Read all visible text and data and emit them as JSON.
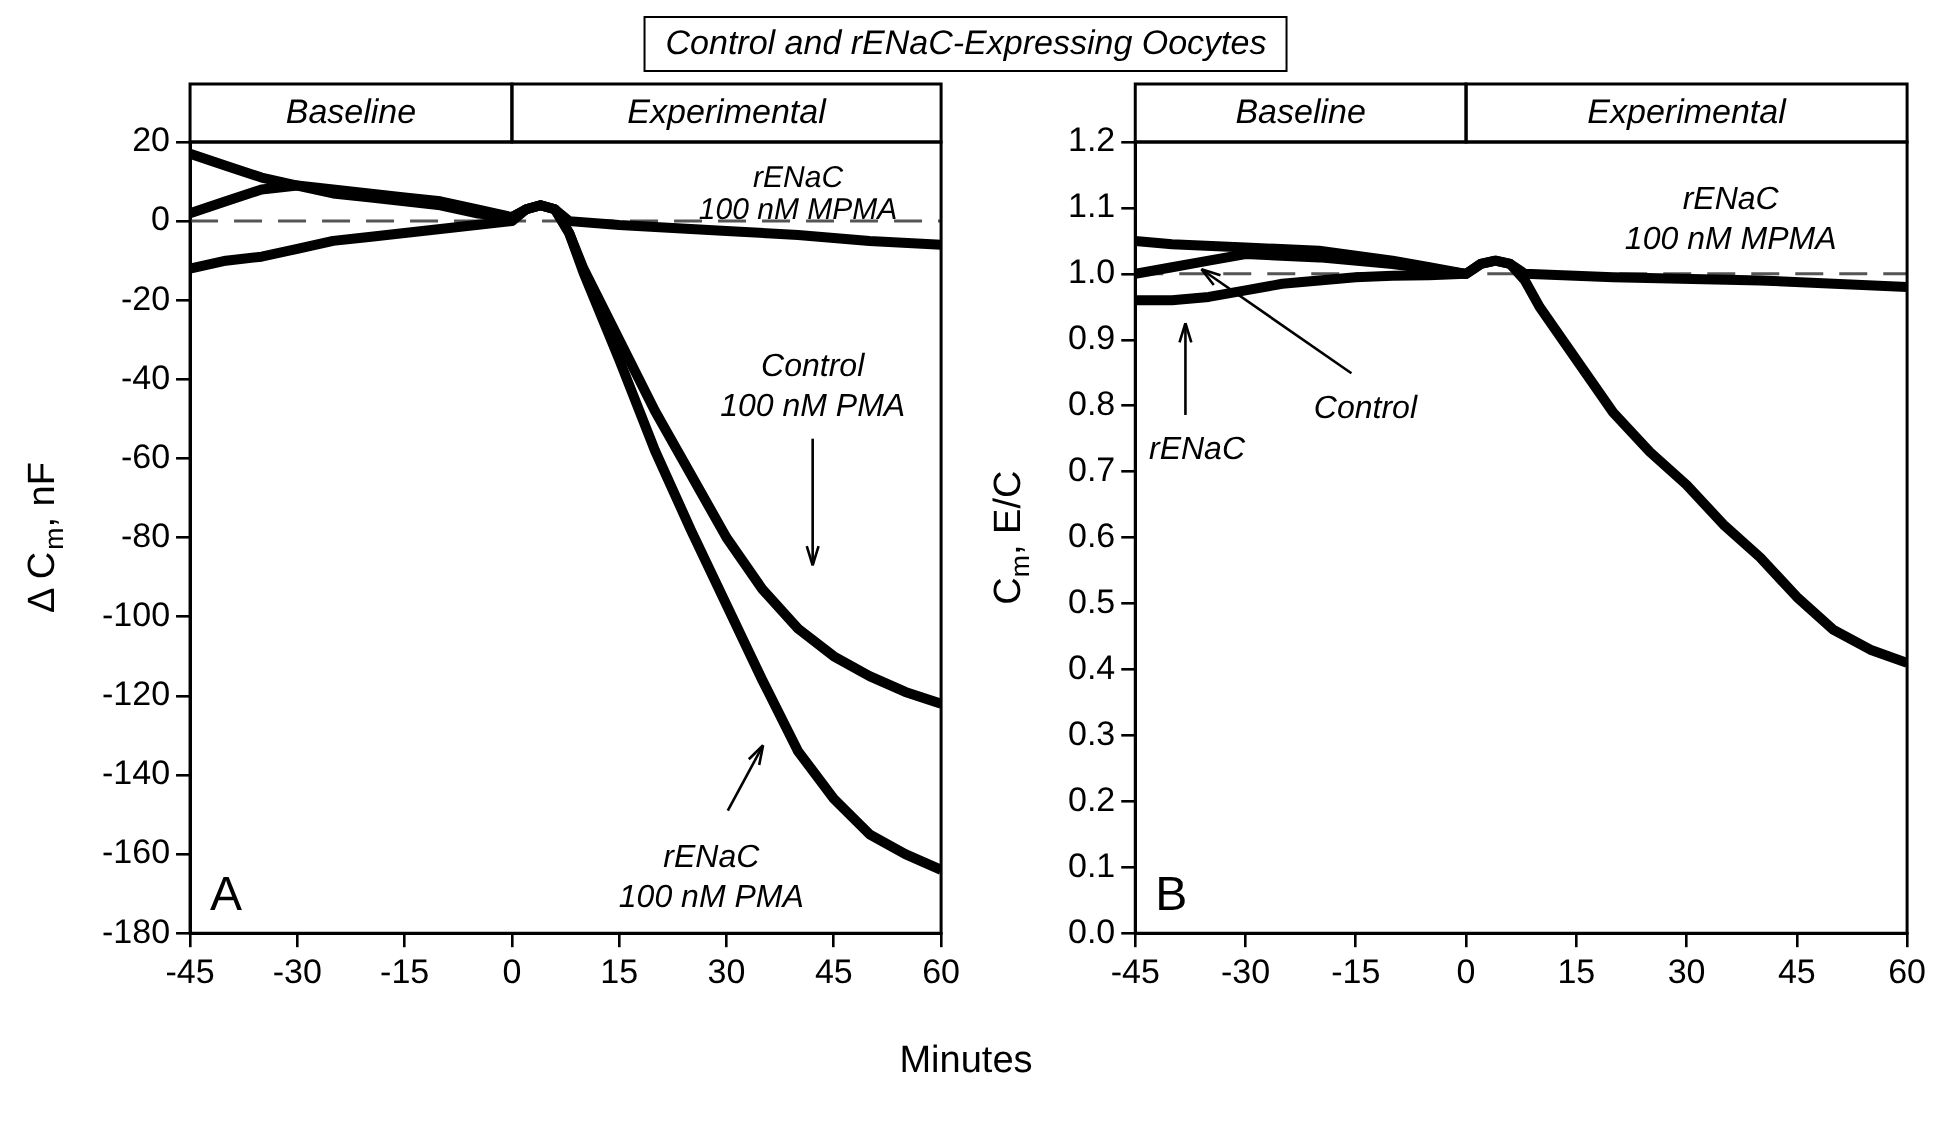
{
  "chart_data": [
    {
      "type": "line",
      "title": "Control and rENaC-Expressing Oocytes",
      "xlabel": "Minutes",
      "ylabel": "Δ C$_{m}$, nF",
      "xlim": [
        -45,
        60
      ],
      "xticks": [
        -45,
        -30,
        -15,
        0,
        15,
        30,
        45,
        60
      ],
      "ylim": [
        -180,
        20
      ],
      "yticks": [
        -180,
        -160,
        -140,
        -120,
        -100,
        -80,
        -60,
        -40,
        -20,
        0,
        20
      ],
      "series": [
        {
          "color": "#000000",
          "x": [
            -45,
            -40,
            -35,
            -30,
            -25,
            -20,
            -15,
            -10,
            -5,
            0,
            2,
            4,
            6,
            8,
            15,
            20,
            30,
            40,
            50,
            60
          ],
          "values": [
            17,
            14,
            11,
            9,
            8,
            7,
            6,
            5,
            3,
            1,
            3,
            4,
            3,
            0,
            -1,
            -1.5,
            -2.5,
            -3.5,
            -5,
            -6
          ]
        },
        {
          "color": "#000000",
          "x": [
            -45,
            -40,
            -35,
            -30,
            -25,
            -20,
            -15,
            -10,
            -5,
            0,
            2,
            4,
            6,
            8,
            10,
            15,
            20,
            25,
            30,
            35,
            40,
            45,
            50,
            55,
            60
          ],
          "values": [
            2,
            5,
            8,
            9,
            7,
            6,
            5,
            4,
            2,
            1,
            3,
            4,
            3,
            -3,
            -12,
            -30,
            -48,
            -64,
            -80,
            -93,
            -103,
            -110,
            -115,
            -119,
            -122
          ]
        },
        {
          "color": "#000000",
          "x": [
            -45,
            -40,
            -35,
            -30,
            -25,
            -20,
            -15,
            -10,
            -5,
            0,
            2,
            4,
            6,
            8,
            10,
            15,
            20,
            25,
            30,
            35,
            40,
            45,
            50,
            55,
            60
          ],
          "values": [
            -12,
            -10,
            -9,
            -7,
            -5,
            -4,
            -3,
            -2,
            -1,
            0,
            3,
            4,
            3,
            -3,
            -13,
            -35,
            -58,
            -78,
            -97,
            -116,
            -134,
            -146,
            -155,
            -160,
            -164
          ]
        }
      ],
      "ref_lines": [
        {
          "axis": "y",
          "value": 0,
          "color": "#555555",
          "line_style": "dashed"
        }
      ],
      "annotations": [
        "Baseline",
        "Experimental",
        "A",
        {
          "text": "rENaC\n100 nM MPMA",
          "x": 40,
          "y": -3.5
        },
        "Control\n100 nM PMA",
        "rENaC\n100 nM PMA"
      ]
    },
    {
      "type": "line",
      "ylabel": "C$_{m}$, E/C",
      "xlim": [
        -45,
        60
      ],
      "xticks": [
        -45,
        -30,
        -15,
        0,
        15,
        30,
        45,
        60
      ],
      "ylim": [
        0,
        1.2
      ],
      "yticks": [
        {
          "value": 0,
          "label": "0.0"
        },
        0.1,
        0.2,
        0.3,
        0.4,
        0.5,
        0.6,
        0.7,
        0.8,
        0.9,
        {
          "value": 1,
          "label": "1.0"
        },
        1.1,
        1.2
      ],
      "series": [
        {
          "color": "#000000",
          "x": [
            -45,
            -40,
            -30,
            -20,
            -10,
            -5,
            0,
            2,
            4,
            6,
            8,
            20,
            40,
            60
          ],
          "values": [
            1.05,
            1.045,
            1.04,
            1.035,
            1.02,
            1.01,
            1.0,
            1.015,
            1.02,
            1.015,
            1.0,
            0.995,
            0.99,
            0.98
          ]
        },
        {
          "color": "#000000",
          "x": [
            -45,
            -40,
            -35,
            -30,
            -20,
            -10,
            0,
            2,
            4,
            6,
            8,
            10,
            15,
            20,
            25,
            30,
            35,
            40,
            45,
            50,
            55,
            60
          ],
          "values": [
            1.0,
            1.01,
            1.02,
            1.03,
            1.025,
            1.015,
            1.0,
            1.015,
            1.02,
            1.015,
            0.99,
            0.95,
            0.87,
            0.79,
            0.73,
            0.68,
            0.62,
            0.57,
            0.51,
            0.46,
            0.43,
            0.41
          ]
        },
        {
          "color": "#000000",
          "x": [
            -45,
            -40,
            -35,
            -30,
            -25,
            -20,
            -15,
            -10,
            -5,
            0
          ],
          "values": [
            0.96,
            0.96,
            0.965,
            0.975,
            0.985,
            0.99,
            0.995,
            0.997,
            0.998,
            1.0
          ]
        }
      ],
      "ref_lines": [
        {
          "axis": "y",
          "value": 1,
          "color": "#555555",
          "line_style": "dashed"
        }
      ],
      "annotations": [
        "Baseline",
        "Experimental",
        "B",
        {
          "text": "rENaC\n100 nM MPMA",
          "x": 36,
          "y": 0.99
        },
        "rENaC",
        {
          "text": "Control",
          "x": -36,
          "y": 1.007
        }
      ]
    }
  ]
}
